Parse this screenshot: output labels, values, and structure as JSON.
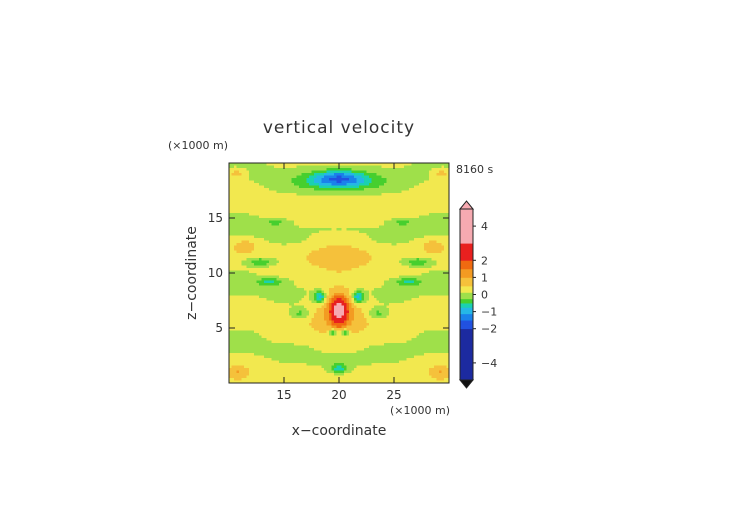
{
  "chart_data": {
    "type": "heatmap",
    "title": "vertical velocity",
    "time_label": "8160 s",
    "xlabel": "x−coordinate",
    "ylabel": "z−coordinate",
    "x_unit": "(×1000 m)",
    "y_unit": "(×1000 m)",
    "xlim": [
      10,
      30
    ],
    "ylim": [
      0,
      20
    ],
    "x_ticks": [
      "15",
      "20",
      "25"
    ],
    "y_ticks": [
      "5",
      "10",
      "15"
    ],
    "colorbar": {
      "tick_labels": [
        "4",
        "2",
        "1",
        "0",
        "−1",
        "−2",
        "−4"
      ],
      "tick_values": [
        4,
        2,
        1,
        0,
        -1,
        -2,
        -4
      ],
      "range": [
        -5,
        5
      ],
      "extend": "both"
    },
    "features": [
      {
        "x": 20,
        "z": 6.5,
        "w": 2.5,
        "note": "updraft core"
      },
      {
        "x": 18.3,
        "z": 7.8,
        "w": -1.2
      },
      {
        "x": 21.7,
        "z": 7.8,
        "w": -1.2
      },
      {
        "x": 19.5,
        "z": 4.6,
        "w": -1.0
      },
      {
        "x": 20,
        "z": 1.3,
        "w": -0.9
      },
      {
        "x": 20,
        "z": 18.3,
        "w": -1.2
      },
      {
        "x": 13,
        "z": 11,
        "w": -0.8
      },
      {
        "x": 27,
        "z": 11,
        "w": -0.8
      },
      {
        "x": 20,
        "z": 11.5,
        "w": 0.6
      },
      {
        "x": 20,
        "z": 13,
        "w": 0.4
      }
    ]
  }
}
